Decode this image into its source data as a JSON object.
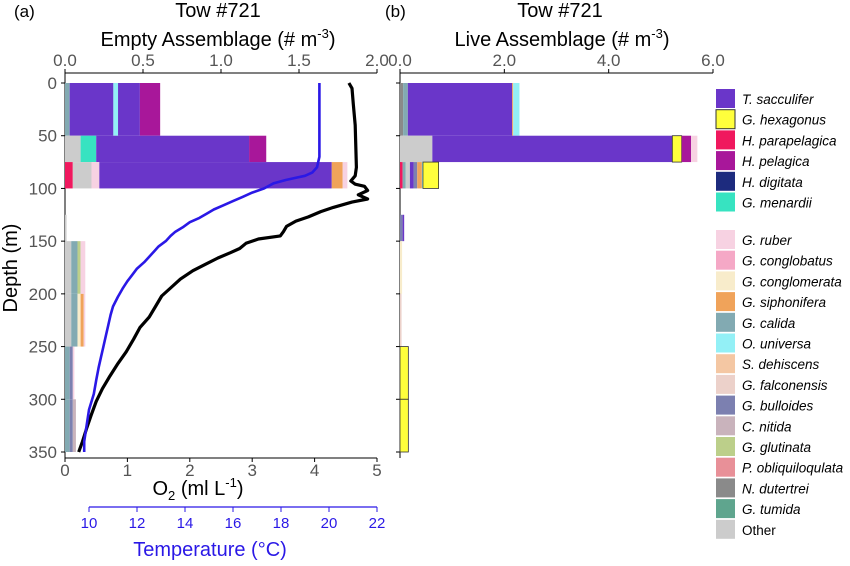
{
  "chart_data": [
    {
      "type": "bar",
      "panel_label": "(a)",
      "title": "Tow #721",
      "subtitle_text": "Empty Assemblage (# m",
      "subtitle_sup": "-3",
      "subtitle_close": ")",
      "ylabel": "Depth (m)",
      "ylim": [
        0,
        350
      ],
      "y_ticks": [
        0,
        50,
        100,
        150,
        200,
        250,
        300,
        350
      ],
      "x_top_lim": [
        0,
        2.0
      ],
      "x_top_ticks": [
        "0.0",
        "0.5",
        "1.0",
        "1.5",
        "2.0"
      ],
      "x_bottom_lim": [
        0,
        5
      ],
      "x_bottom_ticks": [
        "0",
        "1",
        "2",
        "3",
        "4",
        "5"
      ],
      "x_bottom_label_main": "O",
      "x_bottom_label_sub": "2",
      "x_bottom_label_rest": " (ml L",
      "x_bottom_label_sup": "-1",
      "x_bottom_label_close": ")",
      "temp_lim": [
        9,
        22
      ],
      "temp_ticks": [
        "10",
        "12",
        "14",
        "16",
        "18",
        "20",
        "22"
      ],
      "temp_label": "Temperature (°C)",
      "bars": [
        {
          "top": 0,
          "bottom": 50,
          "segments": [
            {
              "species": "G. calida",
              "value": 0.03
            },
            {
              "species": "T. sacculifer",
              "value": 0.28
            },
            {
              "species": "O. universa",
              "value": 0.03
            },
            {
              "species": "T. sacculifer",
              "value": 0.14
            },
            {
              "species": "H. pelagica",
              "value": 0.13
            }
          ]
        },
        {
          "top": 50,
          "bottom": 75,
          "segments": [
            {
              "species": "Other",
              "value": 0.1
            },
            {
              "species": "G. menardii",
              "value": 0.1
            },
            {
              "species": "T. sacculifer",
              "value": 0.98
            },
            {
              "species": "H. pelagica",
              "value": 0.11
            }
          ]
        },
        {
          "top": 75,
          "bottom": 100,
          "segments": [
            {
              "species": "H. parapelagica",
              "value": 0.05
            },
            {
              "species": "Other",
              "value": 0.12
            },
            {
              "species": "G. ruber",
              "value": 0.05
            },
            {
              "species": "T. sacculifer",
              "value": 1.49
            },
            {
              "species": "G. siphonifera",
              "value": 0.07
            },
            {
              "species": "G. ruber",
              "value": 0.03
            }
          ]
        },
        {
          "top": 125,
          "bottom": 150,
          "segments": [
            {
              "species": "Other",
              "value": 0.01
            }
          ]
        },
        {
          "top": 150,
          "bottom": 200,
          "segments": [
            {
              "species": "Other",
              "value": 0.04
            },
            {
              "species": "G. calida",
              "value": 0.04
            },
            {
              "species": "G. glutinata",
              "value": 0.02
            },
            {
              "species": "G. ruber",
              "value": 0.03
            }
          ]
        },
        {
          "top": 200,
          "bottom": 250,
          "segments": [
            {
              "species": "Other",
              "value": 0.04
            },
            {
              "species": "G. calida",
              "value": 0.04
            },
            {
              "species": "G. conglomerata",
              "value": 0.02
            },
            {
              "species": "G. siphonifera",
              "value": 0.02
            },
            {
              "species": "G. ruber",
              "value": 0.01
            }
          ]
        },
        {
          "top": 250,
          "bottom": 300,
          "segments": [
            {
              "species": "G. calida",
              "value": 0.03
            },
            {
              "species": "G. bulloides",
              "value": 0.02
            },
            {
              "species": "G. ruber",
              "value": 0.01
            }
          ]
        },
        {
          "top": 300,
          "bottom": 350,
          "segments": [
            {
              "species": "G. calida",
              "value": 0.03
            },
            {
              "species": "G. bulloides",
              "value": 0.02
            },
            {
              "species": "C. nitida",
              "value": 0.02
            }
          ]
        }
      ],
      "temperature_profile": [
        [
          19.6,
          0
        ],
        [
          19.6,
          5
        ],
        [
          19.6,
          20
        ],
        [
          19.6,
          40
        ],
        [
          19.6,
          60
        ],
        [
          19.6,
          70
        ],
        [
          19.5,
          80
        ],
        [
          19.3,
          85
        ],
        [
          19.0,
          88
        ],
        [
          18.6,
          90
        ],
        [
          18.2,
          92
        ],
        [
          17.7,
          95
        ],
        [
          17.3,
          100
        ],
        [
          16.8,
          104
        ],
        [
          16.4,
          108
        ],
        [
          16.0,
          112
        ],
        [
          15.6,
          116
        ],
        [
          15.2,
          120
        ],
        [
          14.9,
          124
        ],
        [
          14.6,
          128
        ],
        [
          14.2,
          132
        ],
        [
          13.9,
          137
        ],
        [
          13.6,
          141
        ],
        [
          13.4,
          145
        ],
        [
          13.2,
          150
        ],
        [
          12.9,
          155
        ],
        [
          12.7,
          160
        ],
        [
          12.5,
          165
        ],
        [
          12.3,
          170
        ],
        [
          12.0,
          176
        ],
        [
          11.8,
          182
        ],
        [
          11.6,
          188
        ],
        [
          11.4,
          195
        ],
        [
          11.2,
          203
        ],
        [
          11.0,
          212
        ],
        [
          10.9,
          220
        ],
        [
          10.8,
          230
        ],
        [
          10.7,
          240
        ],
        [
          10.6,
          250
        ],
        [
          10.5,
          260
        ],
        [
          10.4,
          270
        ],
        [
          10.3,
          282
        ],
        [
          10.2,
          295
        ],
        [
          10.0,
          310
        ],
        [
          9.9,
          325
        ],
        [
          9.8,
          340
        ],
        [
          9.8,
          350
        ]
      ],
      "oxygen_profile": [
        [
          4.55,
          0
        ],
        [
          4.6,
          5
        ],
        [
          4.62,
          20
        ],
        [
          4.65,
          40
        ],
        [
          4.66,
          60
        ],
        [
          4.67,
          80
        ],
        [
          4.65,
          88
        ],
        [
          4.58,
          93
        ],
        [
          4.65,
          96
        ],
        [
          4.8,
          98
        ],
        [
          4.85,
          102
        ],
        [
          4.7,
          106
        ],
        [
          4.85,
          110
        ],
        [
          4.6,
          113
        ],
        [
          4.3,
          118
        ],
        [
          4.1,
          122
        ],
        [
          3.9,
          127
        ],
        [
          3.7,
          131
        ],
        [
          3.55,
          136
        ],
        [
          3.5,
          141
        ],
        [
          3.45,
          145
        ],
        [
          3.1,
          148
        ],
        [
          2.9,
          152
        ],
        [
          2.8,
          157
        ],
        [
          2.65,
          161
        ],
        [
          2.45,
          166
        ],
        [
          2.25,
          172
        ],
        [
          2.05,
          178
        ],
        [
          1.85,
          186
        ],
        [
          1.7,
          194
        ],
        [
          1.55,
          202
        ],
        [
          1.45,
          212
        ],
        [
          1.35,
          222
        ],
        [
          1.2,
          232
        ],
        [
          1.1,
          243
        ],
        [
          0.98,
          255
        ],
        [
          0.85,
          266
        ],
        [
          0.72,
          278
        ],
        [
          0.6,
          290
        ],
        [
          0.5,
          302
        ],
        [
          0.42,
          315
        ],
        [
          0.35,
          327
        ],
        [
          0.28,
          340
        ],
        [
          0.22,
          350
        ]
      ]
    },
    {
      "type": "bar",
      "panel_label": "(b)",
      "title": "Tow #721",
      "subtitle_text": "Live Assemblage (# m",
      "subtitle_sup": "-3",
      "subtitle_close": ")",
      "ylim": [
        0,
        350
      ],
      "x_top_lim": [
        0,
        6.0
      ],
      "x_top_ticks": [
        "0.0",
        "2.0",
        "4.0",
        "6.0"
      ],
      "bars": [
        {
          "top": 0,
          "bottom": 50,
          "segments": [
            {
              "species": "N. dutertrei",
              "value": 0.06
            },
            {
              "species": "G. calida",
              "value": 0.09
            },
            {
              "species": "T. sacculifer",
              "value": 2.0
            },
            {
              "species": "G. siphonifera",
              "value": 0.02
            },
            {
              "species": "O. universa",
              "value": 0.12
            }
          ]
        },
        {
          "top": 50,
          "bottom": 75,
          "segments": [
            {
              "species": "Other",
              "value": 0.62
            },
            {
              "species": "T. sacculifer",
              "value": 4.6
            },
            {
              "species": "G. hexagonus",
              "value": 0.18
            },
            {
              "species": "H. pelagica",
              "value": 0.18
            },
            {
              "species": "G. ruber",
              "value": 0.12
            }
          ]
        },
        {
          "top": 75,
          "bottom": 100,
          "segments": [
            {
              "species": "H. parapelagica",
              "value": 0.05
            },
            {
              "species": "G. calida",
              "value": 0.06
            },
            {
              "species": "Other",
              "value": 0.08
            },
            {
              "species": "T. sacculifer",
              "value": 0.07
            },
            {
              "species": "G. bulloides",
              "value": 0.07
            },
            {
              "species": "G. siphonifera",
              "value": 0.09
            },
            {
              "species": "O. universa",
              "value": 0.02
            },
            {
              "species": "G. hexagonus",
              "value": 0.3
            }
          ]
        },
        {
          "top": 125,
          "bottom": 150,
          "segments": [
            {
              "species": "G. bulloides",
              "value": 0.05
            },
            {
              "species": "T. sacculifer",
              "value": 0.03
            }
          ]
        },
        {
          "top": 150,
          "bottom": 200,
          "segments": [
            {
              "species": "G. conglomerata",
              "value": 0.04
            }
          ]
        },
        {
          "top": 200,
          "bottom": 250,
          "segments": [
            {
              "species": "G. falconensis",
              "value": 0.03
            }
          ]
        },
        {
          "top": 250,
          "bottom": 300,
          "segments": [
            {
              "species": "G. hexagonus",
              "value": 0.16
            }
          ]
        },
        {
          "top": 300,
          "bottom": 350,
          "segments": [
            {
              "species": "G. hexagonus",
              "value": 0.16
            }
          ]
        }
      ],
      "legend_top": [
        {
          "name": "T. sacculifer",
          "color": "#6a36c9"
        },
        {
          "name": "G. hexagonus",
          "color": "#ffff3c"
        },
        {
          "name": "H. parapelagica",
          "color": "#f0185e"
        },
        {
          "name": "H. pelagica",
          "color": "#a8179a"
        },
        {
          "name": "H. digitata",
          "color": "#1d2b7e"
        },
        {
          "name": "G. menardii",
          "color": "#37e3c1"
        }
      ],
      "legend_bottom": [
        {
          "name": "G. ruber",
          "color": "#f7d2e2"
        },
        {
          "name": "G. conglobatus",
          "color": "#f5a8c6"
        },
        {
          "name": "G. conglomerata",
          "color": "#f8eccb"
        },
        {
          "name": "G. siphonifera",
          "color": "#f0a35a"
        },
        {
          "name": "G. calida",
          "color": "#82aab2"
        },
        {
          "name": "O. universa",
          "color": "#93f0f6"
        },
        {
          "name": "S. dehiscens",
          "color": "#f4c7a3"
        },
        {
          "name": "G. falconensis",
          "color": "#ecd1ca"
        },
        {
          "name": "G. bulloides",
          "color": "#7c80b0"
        },
        {
          "name": "C. nitida",
          "color": "#c9b3bc"
        },
        {
          "name": "G. glutinata",
          "color": "#bccf8a"
        },
        {
          "name": "P. obliquiloqulata",
          "color": "#e89098"
        },
        {
          "name": "N. dutertrei",
          "color": "#8a8a8a"
        },
        {
          "name": "G. tumida",
          "color": "#5fa58e"
        },
        {
          "name": "Other",
          "color": "#cccccc",
          "upright": true
        }
      ]
    }
  ],
  "colors": {
    "temperature_line": "#2a18e6",
    "oxygen_line": "#000000",
    "axis": "#000000",
    "tick_label": "#555555",
    "bar_outline": "#222222"
  }
}
